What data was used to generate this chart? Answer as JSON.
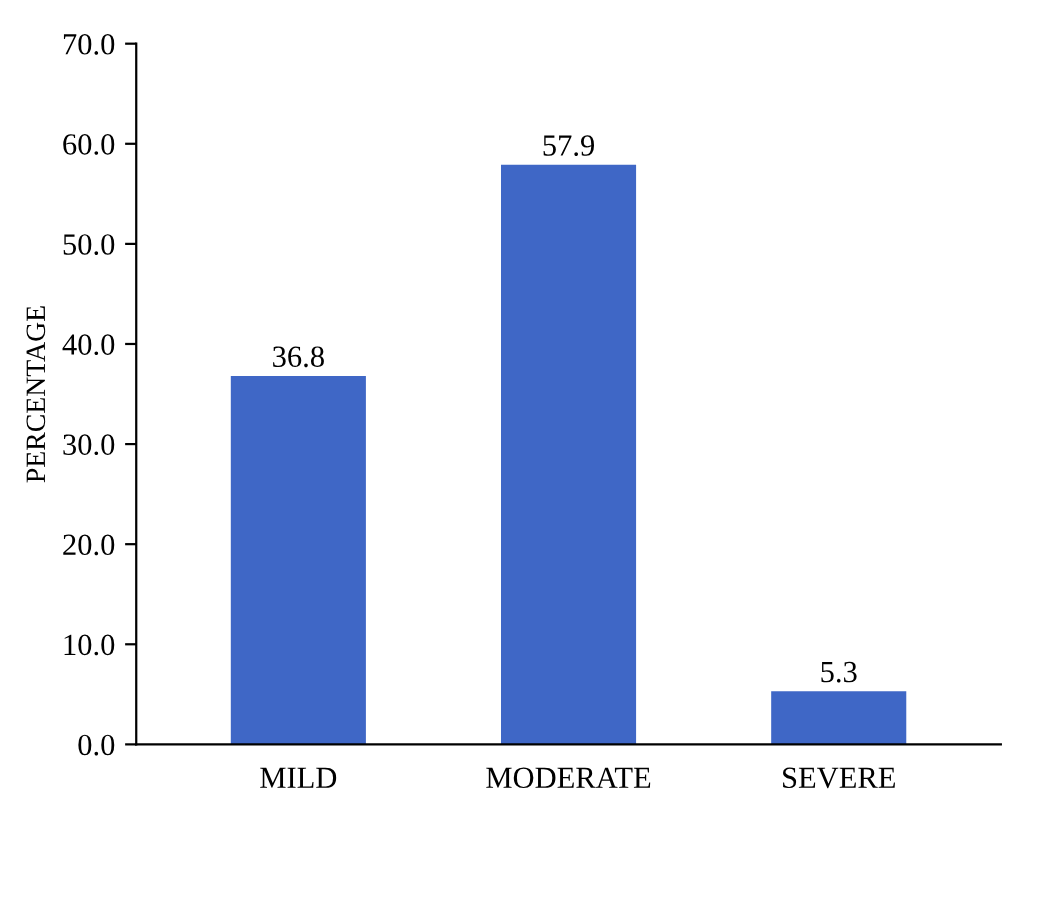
{
  "chart_data": {
    "type": "bar",
    "ylabel": "PERCENTAGE",
    "categories": [
      "MILD",
      "MODERATE",
      "SEVERE"
    ],
    "values": [
      36.8,
      57.9,
      5.3
    ],
    "color": "#3f67c6",
    "ylim": [
      0,
      70
    ],
    "yticks": [
      {
        "value": 0,
        "label": "0.0"
      },
      {
        "value": 10,
        "label": "10.0"
      },
      {
        "value": 20,
        "label": "20.0"
      },
      {
        "value": 30,
        "label": "30.0"
      },
      {
        "value": 40,
        "label": "40.0"
      },
      {
        "value": 50,
        "label": "50.0"
      },
      {
        "value": 60,
        "label": "60.0"
      },
      {
        "value": 70,
        "label": "70.0"
      }
    ],
    "data_labels": true,
    "grid": false,
    "legend": false
  }
}
